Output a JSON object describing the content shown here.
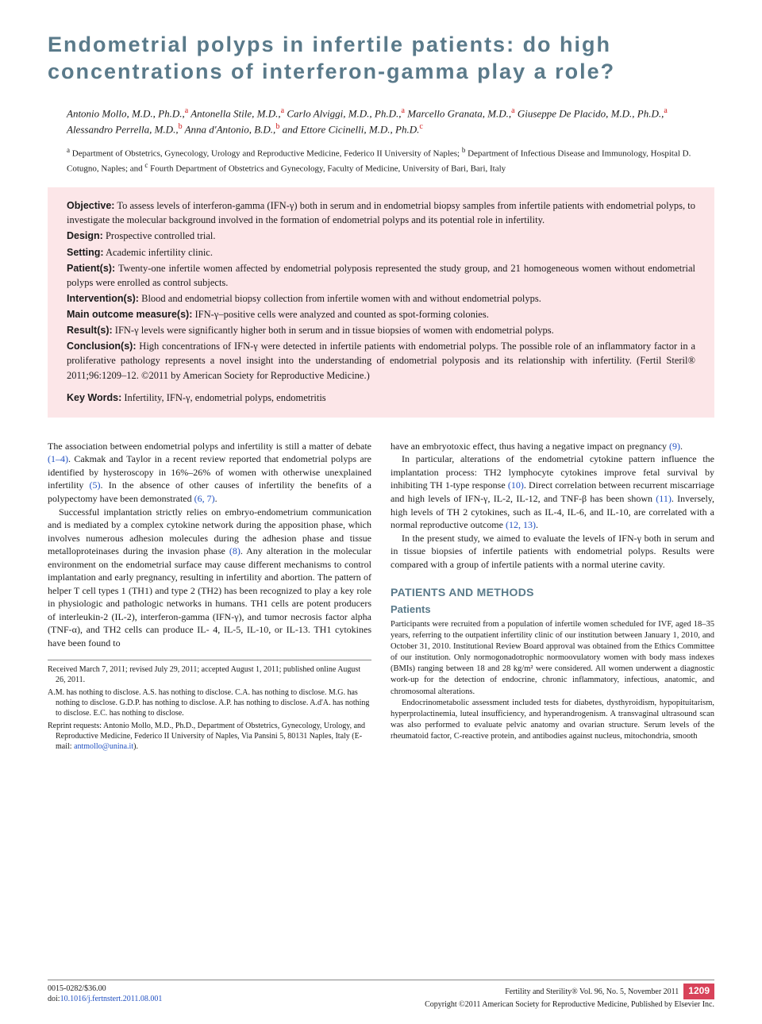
{
  "title": "Endometrial polyps in infertile patients: do high concentrations of interferon-gamma play a role?",
  "authors_html": "Antonio Mollo, M.D., Ph.D.,|a| Antonella Stile, M.D.,|a| Carlo Alviggi, M.D., Ph.D.,|a| Marcello Granata, M.D.,|a| Giuseppe De Placido, M.D., Ph.D.,|a| Alessandro Perrella, M.D.,|b| Anna d'Antonio, B.D.,|b| and Ettore Cicinelli, M.D., Ph.D.|c|",
  "affiliations": "|a| Department of Obstetrics, Gynecology, Urology and Reproductive Medicine, Federico II University of Naples; |b| Department of Infectious Disease and Immunology, Hospital D. Cotugno, Naples; and |c| Fourth Department of Obstetrics and Gynecology, Faculty of Medicine, University of Bari, Bari, Italy",
  "abstract": {
    "objective": "To assess levels of interferon-gamma (IFN-γ) both in serum and in endometrial biopsy samples from infertile patients with endometrial polyps, to investigate the molecular background involved in the formation of endometrial polyps and its potential role in infertility.",
    "design": "Prospective controlled trial.",
    "setting": "Academic infertility clinic.",
    "patients": "Twenty-one infertile women affected by endometrial polyposis represented the study group, and 21 homogeneous women without endometrial polyps were enrolled as control subjects.",
    "interventions": "Blood and endometrial biopsy collection from infertile women with and without endometrial polyps.",
    "mom": "IFN-γ–positive cells were analyzed and counted as spot-forming colonies.",
    "results": "IFN-γ levels were significantly higher both in serum and in tissue biopsies of women with endometrial polyps.",
    "conclusions": "High concentrations of IFN-γ were detected in infertile patients with endometrial polyps. The possible role of an inflammatory factor in a proliferative pathology represents a novel insight into the understanding of endometrial polyposis and its relationship with infertility. (Fertil Steril® 2011;96:1209–12. ©2011 by American Society for Reproductive Medicine.)",
    "keywords": "Infertility, IFN-γ, endometrial polyps, endometritis",
    "labels": {
      "objective": "Objective:",
      "design": "Design:",
      "setting": "Setting:",
      "patients": "Patient(s):",
      "interventions": "Intervention(s):",
      "mom": "Main outcome measure(s):",
      "results": "Result(s):",
      "conclusions": "Conclusion(s):",
      "keywords": "Key Words:"
    }
  },
  "body": {
    "left": {
      "p1a": "The association between endometrial polyps and infertility is still a matter of debate ",
      "p1_ref1": "(1–4)",
      "p1b": ". Cakmak and Taylor in a recent review reported that endometrial polyps are identified by hysteroscopy in 16%–26% of women with otherwise unexplained infertility ",
      "p1_ref2": "(5)",
      "p1c": ". In the absence of other causes of infertility the benefits of a polypectomy have been demonstrated ",
      "p1_ref3": "(6, 7)",
      "p1d": ".",
      "p2a": "Successful implantation strictly relies on embryo-endometrium communication and is mediated by a complex cytokine network during the apposition phase, which involves numerous adhesion molecules during the adhesion phase and tissue metalloproteinases during the invasion phase ",
      "p2_ref1": "(8)",
      "p2b": ". Any alteration in the molecular environment on the endometrial surface may cause different mechanisms to control implantation and early pregnancy, resulting in infertility and abortion. The pattern of helper T cell types 1 (TH1) and type 2 (TH2) has been recognized to play a key role in physiologic and pathologic networks in humans. TH1 cells are potent producers of interleukin-2 (IL-2), interferon-gamma (IFN-γ), and tumor necrosis factor alpha (TNF-α), and TH2 cells can produce IL- 4, IL-5, IL-10, or IL-13. TH1 cytokines have been found to"
    },
    "notes": {
      "n1": "Received March 7, 2011; revised July 29, 2011; accepted August 1, 2011; published online August 26, 2011.",
      "n2": "A.M. has nothing to disclose. A.S. has nothing to disclose. C.A. has nothing to disclose. M.G. has nothing to disclose. G.D.P. has nothing to disclose. A.P. has nothing to disclose. A.d'A. has nothing to disclose. E.C. has nothing to disclose.",
      "n3a": "Reprint requests: Antonio Mollo, M.D., Ph.D., Department of Obstetrics, Gynecology, Urology, and Reproductive Medicine, Federico II University of Naples, Via Pansini 5, 80131 Naples, Italy (E-mail: ",
      "n3_link": "antmollo@unina.it",
      "n3b": ")."
    },
    "right": {
      "p1a": "have an embryotoxic effect, thus having a negative impact on pregnancy ",
      "p1_ref1": "(9)",
      "p1b": ".",
      "p2a": "In particular, alterations of the endometrial cytokine pattern influence the implantation process: TH2 lymphocyte cytokines improve fetal survival by inhibiting TH 1-type response ",
      "p2_ref1": "(10)",
      "p2b": ". Direct correlation between recurrent miscarriage and high levels of IFN-γ, IL-2, IL-12, and TNF-β has been shown ",
      "p2_ref2": "(11)",
      "p2c": ". Inversely, high levels of TH 2 cytokines, such as IL-4, IL-6, and IL-10, are correlated with a normal reproductive outcome ",
      "p2_ref3": "(12, 13)",
      "p2d": ".",
      "p3": "In the present study, we aimed to evaluate the levels of IFN-γ both in serum and in tissue biopsies of infertile patients with endometrial polyps. Results were compared with a group of infertile patients with a normal uterine cavity.",
      "sec_head": "PATIENTS AND METHODS",
      "sub_head": "Patients",
      "p4": "Participants were recruited from a population of infertile women scheduled for IVF, aged 18–35 years, referring to the outpatient infertility clinic of our institution between January 1, 2010, and October 31, 2010. Institutional Review Board approval was obtained from the Ethics Committee of our institution. Only normogonadotrophic normoovulatory women with body mass indexes (BMIs) ranging between 18 and 28 kg/m² were considered. All women underwent a diagnostic work-up for the detection of endocrine, chronic inflammatory, infectious, anatomic, and chromosomal alterations.",
      "p5": "Endocrinometabolic assessment included tests for diabetes, dysthyroidism, hypopituitarism, hyperprolactinemia, luteal insufficiency, and hyperandrogenism. A transvaginal ultrasound scan was also performed to evaluate pelvic anatomy and ovarian structure. Serum levels of the rheumatoid factor, C-reactive protein, and antibodies against nucleus, mitochondria, smooth"
    }
  },
  "footer": {
    "issn": "0015-0282/$36.00",
    "doi_label": "doi:",
    "doi": "10.1016/j.fertnstert.2011.08.001",
    "journal": "Fertility and Sterility® Vol. 96, No. 5, November 2011",
    "copyright": "Copyright ©2011 American Society for Reproductive Medicine, Published by Elsevier Inc.",
    "page": "1209"
  },
  "colors": {
    "heading": "#5a7a8a",
    "abstractbg": "#fce6e8",
    "link": "#2050c0",
    "superscript": "#d02020",
    "pagenum_bg": "#d8435a"
  }
}
